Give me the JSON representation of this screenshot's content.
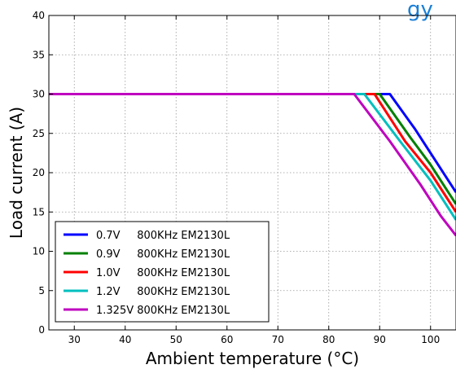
{
  "chart_data": {
    "type": "line",
    "title": "",
    "xlabel": "Ambient temperature (°C)",
    "ylabel": "Load current (A)",
    "xlim": [
      25,
      105
    ],
    "ylim": [
      0,
      40
    ],
    "xticks": [
      30,
      40,
      50,
      60,
      70,
      80,
      90,
      100
    ],
    "yticks": [
      0,
      5,
      10,
      15,
      20,
      25,
      30,
      35,
      40
    ],
    "grid": true,
    "legend_position": "lower-left",
    "overlay_text": "gy",
    "overlay_color": "#1a7fd6",
    "series": [
      {
        "name": "0.7V     800KHz EM2130L",
        "color": "#0000ff",
        "x": [
          25,
          92,
          97,
          100,
          103,
          105
        ],
        "y": [
          30,
          30,
          25.5,
          22.5,
          19.5,
          17.5
        ]
      },
      {
        "name": "0.9V     800KHz EM2130L",
        "color": "#008000",
        "x": [
          25,
          90,
          96,
          100,
          103,
          105
        ],
        "y": [
          30,
          30,
          24.5,
          21,
          18,
          16
        ]
      },
      {
        "name": "1.0V     800KHz EM2130L",
        "color": "#ff0000",
        "x": [
          25,
          89,
          95,
          100,
          103,
          105
        ],
        "y": [
          30,
          30,
          24,
          20,
          17,
          15
        ]
      },
      {
        "name": "1.2V     800KHz EM2130L",
        "color": "#00bfbf",
        "x": [
          25,
          87,
          94,
          100,
          103,
          105
        ],
        "y": [
          30,
          30,
          24,
          19,
          16,
          14
        ]
      },
      {
        "name": "1.325V 800KHz EM2130L",
        "color": "#bf00bf",
        "x": [
          25,
          85,
          92,
          98,
          102,
          105
        ],
        "y": [
          30,
          30,
          24,
          18.5,
          14.5,
          12
        ]
      }
    ]
  }
}
